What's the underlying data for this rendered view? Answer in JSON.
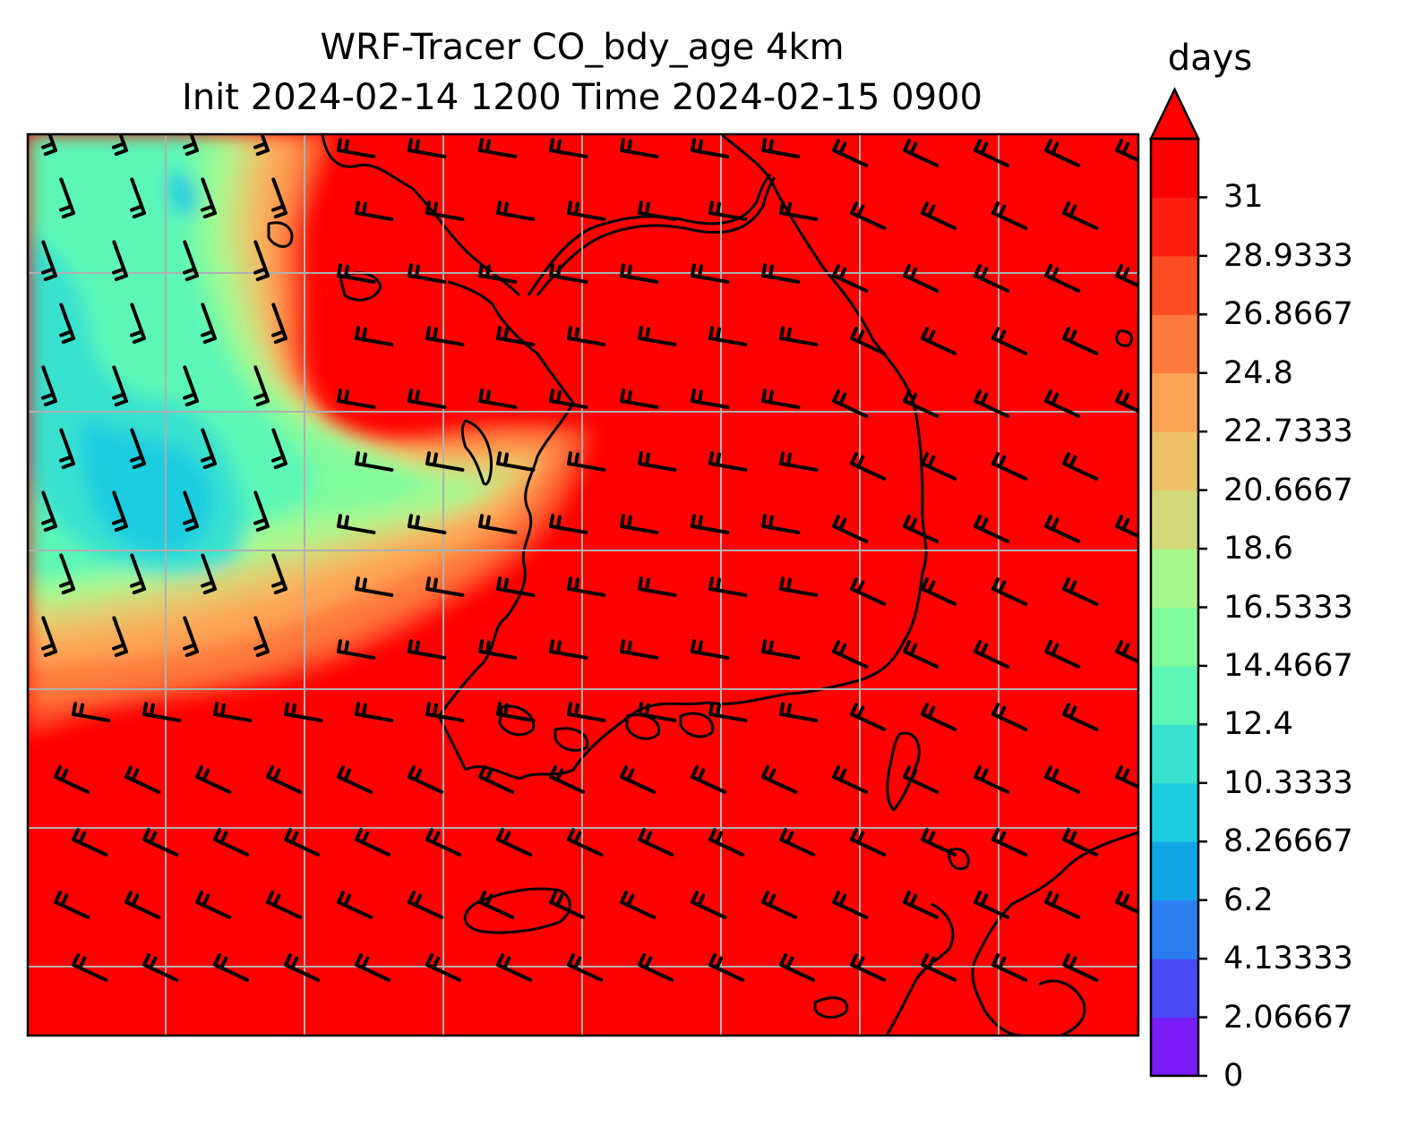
{
  "title_line1": "WRF-Tracer CO_bdy_age 4km",
  "title_line2": "Init 2024-02-14 1200 Time 2024-02-15 0900",
  "colorbar": {
    "label": "days",
    "tick_labels": [
      "0",
      "2.06667",
      "4.13333",
      "6.2",
      "8.26667",
      "10.3333",
      "12.4",
      "14.4667",
      "16.5333",
      "18.6",
      "20.6667",
      "22.7333",
      "24.8",
      "26.8667",
      "28.9333",
      "31"
    ],
    "levels": [
      0,
      2.06667,
      4.13333,
      6.2,
      8.26667,
      10.3333,
      12.4,
      14.4667,
      16.5333,
      18.6,
      20.6667,
      22.7333,
      24.8,
      26.8667,
      28.9333,
      31
    ],
    "colors": [
      "#7a1cf6",
      "#4a4af7",
      "#2c7ef0",
      "#10a6e6",
      "#1ccce0",
      "#38e2cf",
      "#5cf7b6",
      "#82fb9c",
      "#a8f890",
      "#d2d97a",
      "#ecc168",
      "#fca456",
      "#fe7a3e",
      "#fe4c25",
      "#fe1e10",
      "#fe0000"
    ],
    "extend": "max"
  },
  "map": {
    "grid": true,
    "background_value": 31,
    "gridline_color": "#b0b0b0",
    "coastline_color": "#000000",
    "barb_color": "#000000",
    "colormap": "rainbow"
  }
}
